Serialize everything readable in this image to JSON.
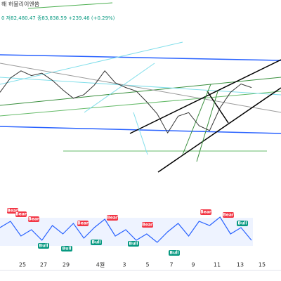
{
  "header": {
    "title": "해 허블리이엔씀",
    "quote": "0 저82,480.47 종83,838.59 +239.46 (+0.29%)"
  },
  "chart_data": {
    "type": "line",
    "price": {
      "values": [
        58,
        70,
        76,
        72,
        74,
        68,
        60,
        53,
        56,
        64,
        76,
        66,
        62,
        59,
        50,
        40,
        24,
        38,
        41,
        30,
        26,
        45,
        58,
        65,
        62
      ],
      "color": "#333333",
      "ylim": [
        0,
        100
      ]
    },
    "rsi": {
      "values": [
        60,
        75,
        40,
        55,
        30,
        65,
        45,
        70,
        35,
        60,
        80,
        40,
        55,
        30,
        45,
        25,
        50,
        70,
        40,
        75,
        65,
        85,
        45,
        60,
        30
      ],
      "color": "#2962ff",
      "ylim": [
        0,
        100
      ]
    },
    "categories": [
      "25",
      "27",
      "29",
      "4월",
      "3",
      "5",
      "7",
      "9",
      "11",
      "13",
      "15"
    ],
    "signals": [
      "Bear",
      "Bear",
      "Bear",
      "Bull",
      "Bull",
      "Bear",
      "Bull",
      "Bear",
      "Bull",
      "Bear",
      "Bull",
      "Bear",
      "Bear",
      "Bull"
    ]
  }
}
